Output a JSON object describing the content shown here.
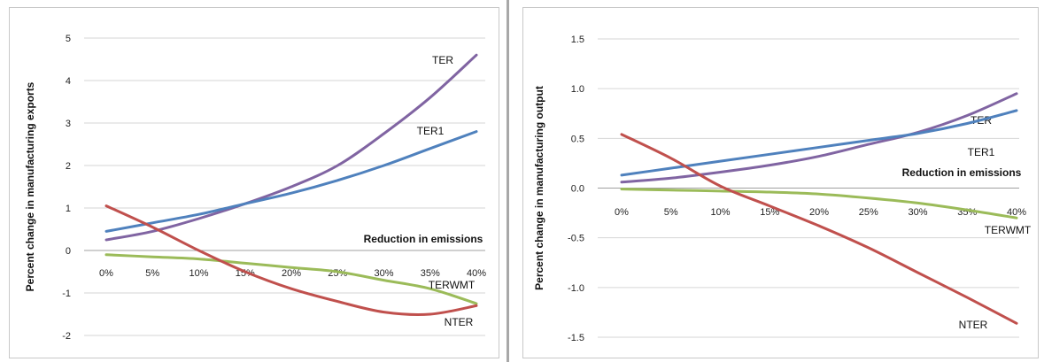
{
  "chart_data": [
    {
      "type": "line",
      "ylabel": "Percent  change in manufacturing exports",
      "xlabel": "Reduction in emissions",
      "categories": [
        "0%",
        "5%",
        "10%",
        "15%",
        "20%",
        "25%",
        "30%",
        "35%",
        "40%"
      ],
      "ylim": [
        -2,
        5
      ],
      "yticks": [
        "-2",
        "-1",
        "0",
        "1",
        "2",
        "3",
        "4",
        "5"
      ],
      "grid": true,
      "series": [
        {
          "name": "TER",
          "color": "#8064a2",
          "values": [
            0.25,
            0.45,
            0.75,
            1.1,
            1.5,
            2.0,
            2.75,
            3.6,
            4.6
          ]
        },
        {
          "name": "TER1",
          "color": "#4f81bd",
          "values": [
            0.45,
            0.65,
            0.85,
            1.1,
            1.35,
            1.65,
            2.0,
            2.4,
            2.8
          ]
        },
        {
          "name": "TERWMT",
          "color": "#9bbb59",
          "values": [
            -0.1,
            -0.15,
            -0.2,
            -0.3,
            -0.4,
            -0.5,
            -0.7,
            -0.9,
            -1.25
          ]
        },
        {
          "name": "NTER",
          "color": "#c0504d",
          "values": [
            1.05,
            0.55,
            0.0,
            -0.5,
            -0.9,
            -1.2,
            -1.45,
            -1.5,
            -1.3
          ]
        }
      ]
    },
    {
      "type": "line",
      "ylabel": "Percent  change in manufacturing output",
      "xlabel": "Reduction in emissions",
      "categories": [
        "0%",
        "5%",
        "10%",
        "15%",
        "20%",
        "25%",
        "30%",
        "35%",
        "40%"
      ],
      "ylim": [
        -1.5,
        1.5
      ],
      "yticks": [
        "-1.5",
        "-1.0",
        "-0.5",
        "0.0",
        "0.5",
        "1.0",
        "1.5"
      ],
      "grid": true,
      "series": [
        {
          "name": "TER",
          "color": "#8064a2",
          "values": [
            0.06,
            0.1,
            0.16,
            0.23,
            0.32,
            0.44,
            0.56,
            0.73,
            0.95
          ]
        },
        {
          "name": "TER1",
          "color": "#4f81bd",
          "values": [
            0.13,
            0.2,
            0.27,
            0.34,
            0.41,
            0.48,
            0.55,
            0.65,
            0.78
          ]
        },
        {
          "name": "TERWMT",
          "color": "#9bbb59",
          "values": [
            -0.01,
            -0.02,
            -0.03,
            -0.04,
            -0.06,
            -0.1,
            -0.15,
            -0.22,
            -0.3
          ]
        },
        {
          "name": "NTER",
          "color": "#c0504d",
          "values": [
            0.54,
            0.3,
            0.02,
            -0.18,
            -0.38,
            -0.6,
            -0.85,
            -1.1,
            -1.36
          ]
        }
      ]
    }
  ]
}
